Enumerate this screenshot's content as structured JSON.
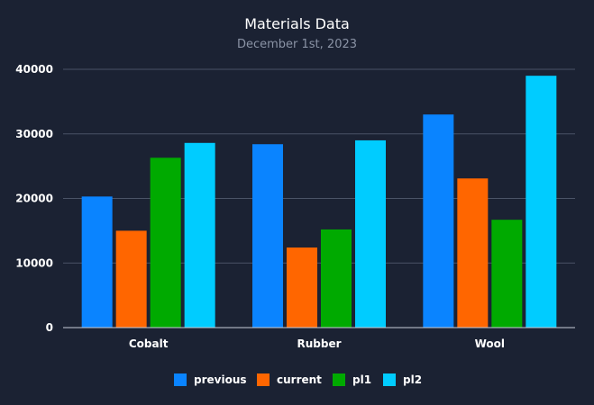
{
  "chart_data": {
    "type": "bar",
    "title": "Materials Data",
    "subtitle": "December 1st, 2023",
    "categories": [
      "Cobalt",
      "Rubber",
      "Wool"
    ],
    "ylim": [
      0,
      40000
    ],
    "yticks": [
      0,
      10000,
      20000,
      30000,
      40000
    ],
    "grid": true,
    "legend_position": "bottom",
    "series": [
      {
        "name": "previous",
        "color": "#0a84ff",
        "values": [
          20300,
          28400,
          33000
        ]
      },
      {
        "name": "current",
        "color": "#ff6600",
        "values": [
          15000,
          12400,
          23100
        ]
      },
      {
        "name": "pl1",
        "color": "#00aa00",
        "values": [
          26300,
          15200,
          16700
        ]
      },
      {
        "name": "pl2",
        "color": "#00ccff",
        "values": [
          28600,
          29000,
          39000
        ]
      }
    ]
  }
}
